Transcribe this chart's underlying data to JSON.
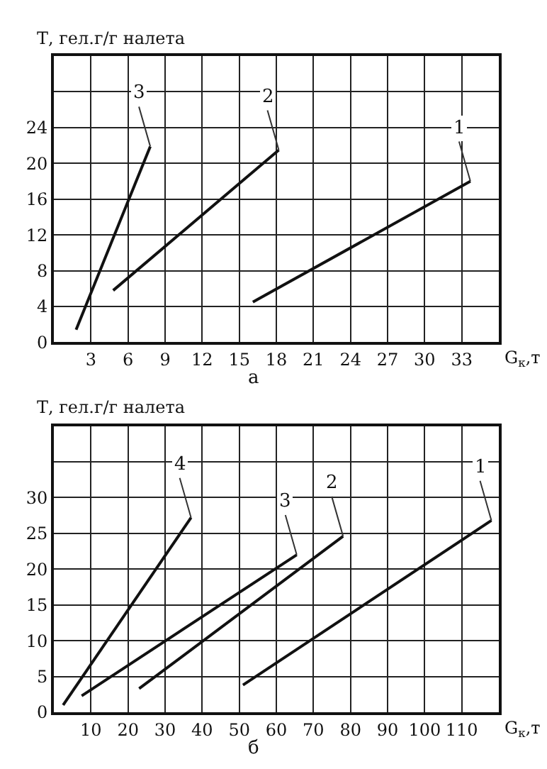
{
  "chart_data": [
    {
      "type": "line",
      "ylabel": "Т, гел.г/г налета",
      "xlabel": "G$_{к}$,т",
      "annotations": [
        "а"
      ],
      "grid": true,
      "marker": "none",
      "line_style": "solid",
      "legend": false,
      "xlim": [
        0,
        36
      ],
      "xticks": [
        3,
        6,
        9,
        12,
        15,
        18,
        21,
        24,
        27,
        30,
        33
      ],
      "ylim": [
        0,
        32
      ],
      "yticks": [
        0,
        4,
        8,
        12,
        16,
        20,
        24,
        {
          "value": 28,
          "label": null
        }
      ],
      "series": [
        {
          "name": "3",
          "color": "#111111",
          "x": [
            1.8,
            7.8
          ],
          "values": [
            1.4,
            21.9
          ]
        },
        {
          "name": "2",
          "color": "#111111",
          "x": [
            4.8,
            18.2
          ],
          "values": [
            5.8,
            21.5
          ]
        },
        {
          "name": "1",
          "color": "#111111",
          "x": [
            16.1,
            33.7
          ],
          "values": [
            4.5,
            18
          ]
        }
      ]
    },
    {
      "type": "line",
      "ylabel": "Т, гел.г/г налета",
      "xlabel": "G$_{к}$,т",
      "annotations": [
        "б"
      ],
      "grid": true,
      "marker": "none",
      "line_style": "solid",
      "legend": false,
      "xlim": [
        0,
        120
      ],
      "xticks": [
        10,
        20,
        30,
        40,
        50,
        60,
        70,
        80,
        90,
        100,
        110
      ],
      "ylim": [
        0,
        40
      ],
      "yticks": [
        0,
        5,
        10,
        15,
        20,
        25,
        30,
        {
          "value": 35,
          "label": null
        }
      ],
      "series": [
        {
          "name": "4",
          "color": "#111111",
          "x": [
            2.5,
            37
          ],
          "values": [
            1,
            27.2
          ]
        },
        {
          "name": "3",
          "color": "#111111",
          "x": [
            7.5,
            65.5
          ],
          "values": [
            2.3,
            22
          ]
        },
        {
          "name": "2",
          "color": "#111111",
          "x": [
            23,
            78
          ],
          "values": [
            3.3,
            24.6
          ]
        },
        {
          "name": "1",
          "color": "#111111",
          "x": [
            51,
            118
          ],
          "values": [
            3.8,
            26.8
          ]
        }
      ]
    }
  ]
}
